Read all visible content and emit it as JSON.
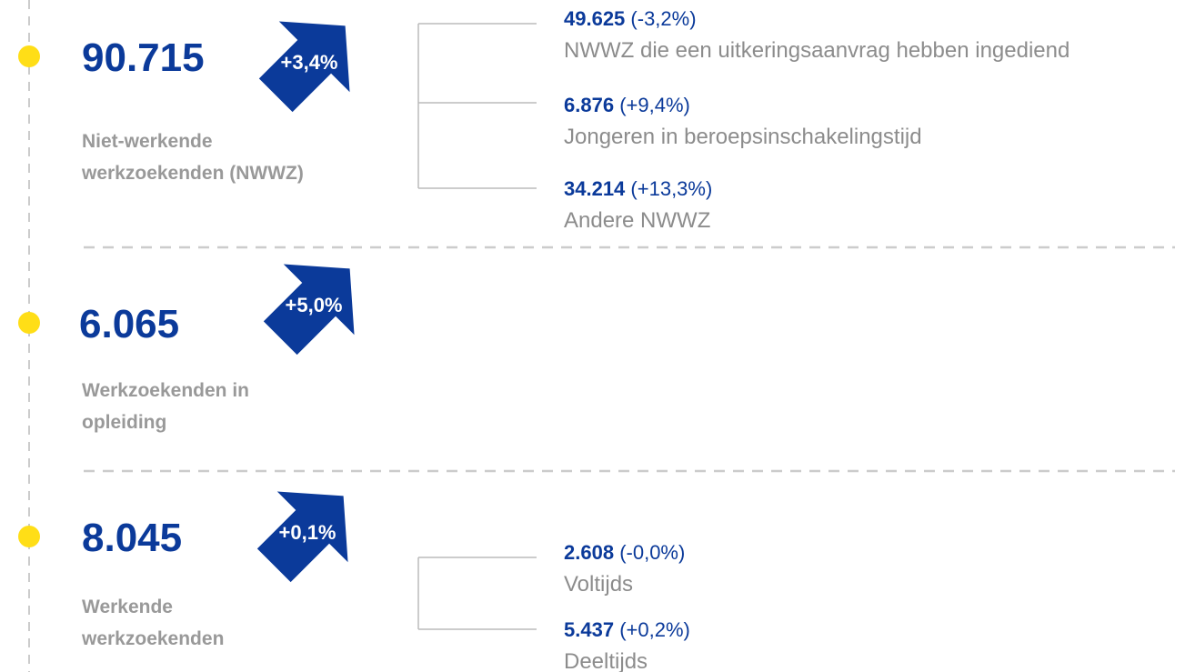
{
  "sections": [
    {
      "value": "90.715",
      "change": "+3,4%",
      "label": "Niet-werkende werkzoekenden (NWWZ)",
      "items": [
        {
          "value": "49.625",
          "change": "(-3,2%)",
          "description": "NWWZ die een uitkeringsaanvrag hebben ingediend"
        },
        {
          "value": "6.876",
          "change": "(+9,4%)",
          "description": "Jongeren in beroepsinschakelingstijd"
        },
        {
          "value": "34.214",
          "change": "(+13,3%)",
          "description": "Andere NWWZ"
        }
      ]
    },
    {
      "value": "6.065",
      "change": "+5,0%",
      "label": "Werkzoekenden in opleiding",
      "items": []
    },
    {
      "value": "8.045",
      "change": "+0,1%",
      "label": "Werkende werkzoekenden",
      "items": [
        {
          "value": "2.608",
          "change": "(-0,0%)",
          "description": "Voltijds"
        },
        {
          "value": "5.437",
          "change": "(+0,2%)",
          "description": "Deeltijds"
        }
      ]
    }
  ]
}
